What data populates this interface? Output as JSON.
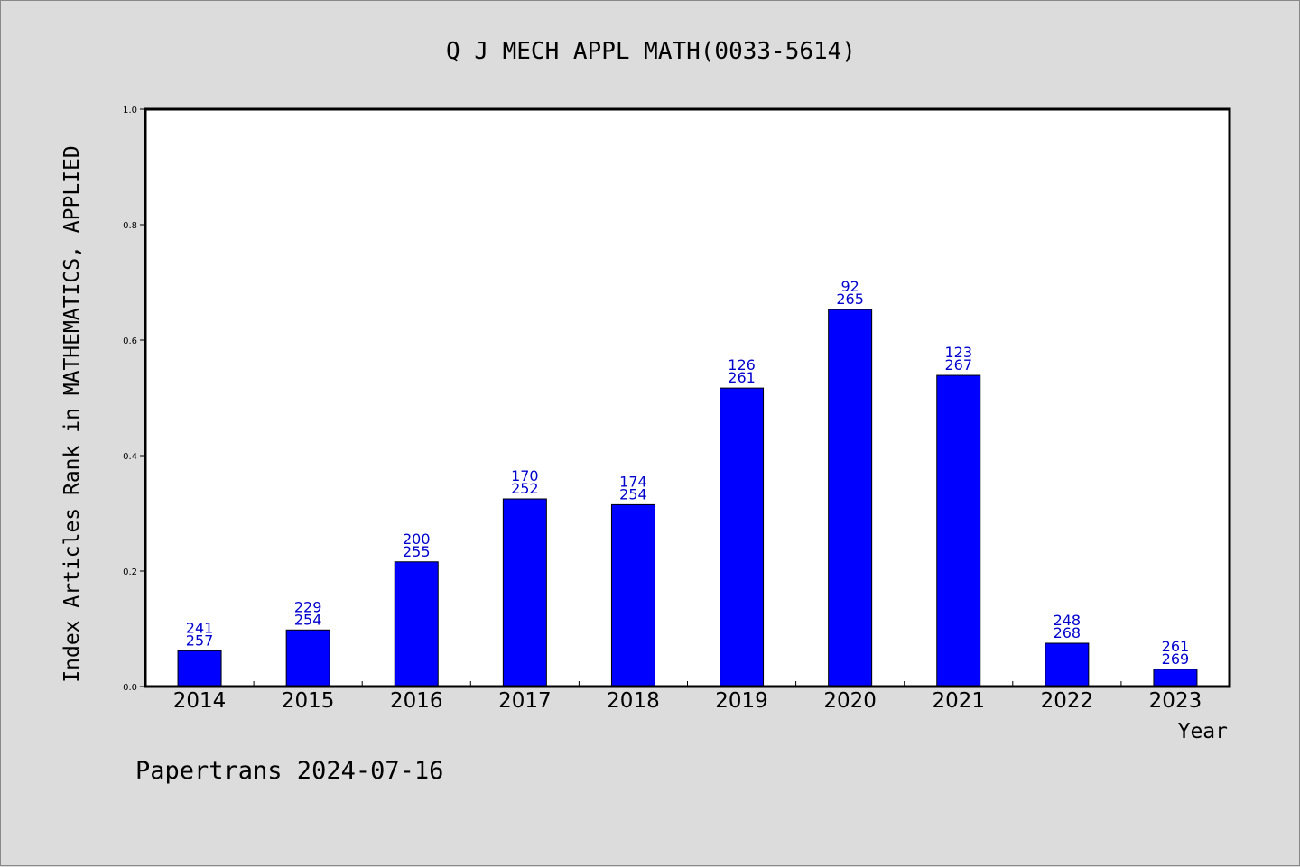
{
  "chart_data": {
    "type": "bar",
    "title": "Q J MECH APPL MATH(0033-5614)",
    "xlabel": "Year",
    "ylabel": "Index Articles Rank in MATHEMATICS, APPLIED",
    "ylim": [
      0,
      1.0
    ],
    "yticks": [
      "0.0",
      "0.2",
      "0.4",
      "0.6",
      "0.8",
      "1.0"
    ],
    "categories": [
      "2014",
      "2015",
      "2016",
      "2017",
      "2018",
      "2019",
      "2020",
      "2021",
      "2022",
      "2023"
    ],
    "values": [
      0.062,
      0.098,
      0.216,
      0.325,
      0.315,
      0.517,
      0.653,
      0.539,
      0.075,
      0.03
    ],
    "label_rank": [
      "241",
      "229",
      "200",
      "170",
      "174",
      "126",
      "92",
      "123",
      "248",
      "261"
    ],
    "label_total": [
      "257",
      "254",
      "255",
      "252",
      "254",
      "261",
      "265",
      "267",
      "268",
      "269"
    ],
    "grid": false,
    "legend": "none",
    "colors": {
      "bar": "#0000ff",
      "label": "#0000cc",
      "background": "#dcdcdc",
      "plot": "#ffffff"
    }
  },
  "footer": {
    "credit": "Papertrans 2024-07-16"
  }
}
